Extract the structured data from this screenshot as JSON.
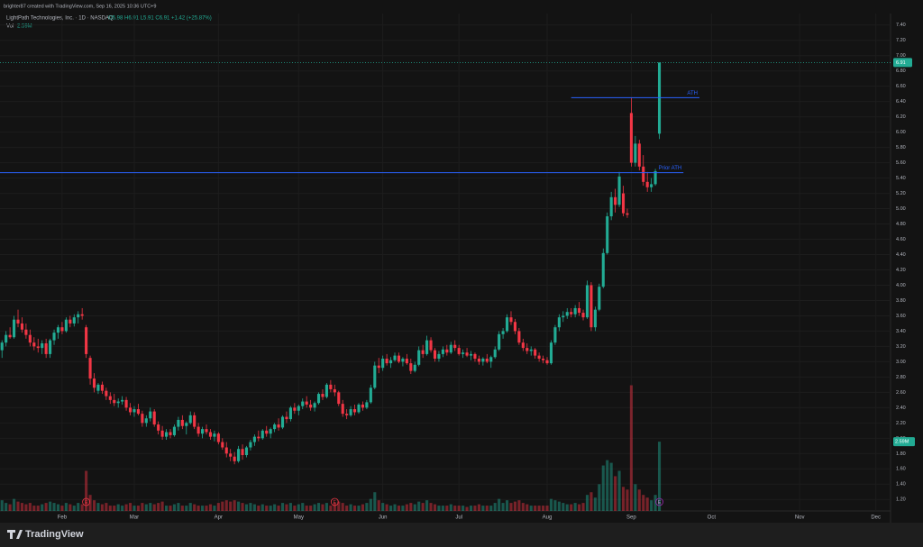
{
  "header": {
    "credit": "brighter87 created with TradingView.com, Sep 16, 2025 10:36 UTC+9"
  },
  "footer": {
    "logo": "TradingView"
  },
  "chart_data": {
    "type": "candlestick",
    "symbol": "LightPath Technologies, Inc. · 1D · NASDAQ",
    "ohlc_text": "O5.98 H6.91 L5.91 C6.91 +1.42 (+25.87%)",
    "volume_title": "Vol",
    "volume_label": "2.59M",
    "last_price": 6.91,
    "up_color": "#22ab94",
    "down_color": "#f23645",
    "grid": true,
    "ylim": [
      1.05,
      7.55
    ],
    "vlim": [
      0,
      18.6
    ],
    "xlim": [
      -0.5,
      221
    ],
    "yticks": [
      {
        "value": 1.2,
        "label": "1.20"
      },
      {
        "value": 1.4,
        "label": "1.40"
      },
      {
        "value": 1.6,
        "label": "1.60"
      },
      {
        "value": 1.8,
        "label": "1.80"
      },
      {
        "value": 2.0,
        "label": "2.00"
      },
      {
        "value": 2.2,
        "label": "2.20"
      },
      {
        "value": 2.4,
        "label": "2.40"
      },
      {
        "value": 2.6,
        "label": "2.60"
      },
      {
        "value": 2.8,
        "label": "2.80"
      },
      {
        "value": 3.0,
        "label": "3.00"
      },
      {
        "value": 3.2,
        "label": "3.20"
      },
      {
        "value": 3.4,
        "label": "3.40"
      },
      {
        "value": 3.6,
        "label": "3.60"
      },
      {
        "value": 3.8,
        "label": "3.80"
      },
      {
        "value": 4.0,
        "label": "4.00"
      },
      {
        "value": 4.2,
        "label": "4.20"
      },
      {
        "value": 4.4,
        "label": "4.40"
      },
      {
        "value": 4.6,
        "label": "4.60"
      },
      {
        "value": 4.8,
        "label": "4.80"
      },
      {
        "value": 5.0,
        "label": "5.00"
      },
      {
        "value": 5.2,
        "label": "5.20"
      },
      {
        "value": 5.4,
        "label": "5.40"
      },
      {
        "value": 5.6,
        "label": "5.60"
      },
      {
        "value": 5.8,
        "label": "5.80"
      },
      {
        "value": 6.0,
        "label": "6.00"
      },
      {
        "value": 6.2,
        "label": "6.20"
      },
      {
        "value": 6.4,
        "label": "6.40"
      },
      {
        "value": 6.6,
        "label": "6.60"
      },
      {
        "value": 6.8,
        "label": "6.80"
      },
      {
        "value": 7.0,
        "label": "7.00"
      },
      {
        "value": 7.2,
        "label": "7.20"
      },
      {
        "value": 7.4,
        "label": "7.40"
      }
    ],
    "xticks": [
      {
        "value": 15,
        "label": "Feb"
      },
      {
        "value": 33,
        "label": "Mar"
      },
      {
        "value": 54,
        "label": "Apr"
      },
      {
        "value": 74,
        "label": "May"
      },
      {
        "value": 95,
        "label": "Jun"
      },
      {
        "value": 114,
        "label": "Jul"
      },
      {
        "value": 136,
        "label": "Aug"
      },
      {
        "value": 157,
        "label": "Sep"
      },
      {
        "value": 177,
        "label": "Oct"
      },
      {
        "value": 199,
        "label": "Nov"
      },
      {
        "value": 218,
        "label": "Dec"
      }
    ],
    "levels": [
      {
        "label": "ATH",
        "value": 6.45,
        "x_range": [
          142,
          174
        ],
        "color": "#2962ff"
      },
      {
        "label": "Prior ATH",
        "value": 5.47,
        "x_range": [
          -0.5,
          170
        ],
        "color": "#2962ff"
      }
    ],
    "events": [
      {
        "index": 21,
        "label": "E"
      },
      {
        "index": 83,
        "label": "E"
      },
      {
        "index": 164,
        "label": "E"
      }
    ],
    "ohlc": [
      [
        3.15,
        3.28,
        3.05,
        3.25
      ],
      [
        3.25,
        3.4,
        3.2,
        3.35
      ],
      [
        3.35,
        3.45,
        3.3,
        3.32
      ],
      [
        3.32,
        3.6,
        3.3,
        3.55
      ],
      [
        3.55,
        3.68,
        3.45,
        3.5
      ],
      [
        3.5,
        3.58,
        3.38,
        3.42
      ],
      [
        3.42,
        3.5,
        3.3,
        3.35
      ],
      [
        3.35,
        3.42,
        3.2,
        3.25
      ],
      [
        3.25,
        3.32,
        3.15,
        3.2
      ],
      [
        3.2,
        3.3,
        3.12,
        3.18
      ],
      [
        3.18,
        3.28,
        3.1,
        3.24
      ],
      [
        3.24,
        3.3,
        3.05,
        3.1
      ],
      [
        3.1,
        3.3,
        3.05,
        3.28
      ],
      [
        3.28,
        3.42,
        3.22,
        3.38
      ],
      [
        3.38,
        3.48,
        3.3,
        3.45
      ],
      [
        3.45,
        3.52,
        3.36,
        3.4
      ],
      [
        3.4,
        3.58,
        3.38,
        3.55
      ],
      [
        3.55,
        3.6,
        3.45,
        3.5
      ],
      [
        3.5,
        3.62,
        3.46,
        3.58
      ],
      [
        3.58,
        3.66,
        3.5,
        3.62
      ],
      [
        3.62,
        3.7,
        3.55,
        3.6
      ],
      [
        3.45,
        3.48,
        3.05,
        3.1
      ],
      [
        3.05,
        3.08,
        2.7,
        2.78
      ],
      [
        2.78,
        2.85,
        2.6,
        2.66
      ],
      [
        2.62,
        2.72,
        2.58,
        2.7
      ],
      [
        2.7,
        2.74,
        2.58,
        2.62
      ],
      [
        2.62,
        2.66,
        2.5,
        2.55
      ],
      [
        2.55,
        2.6,
        2.45,
        2.5
      ],
      [
        2.5,
        2.58,
        2.42,
        2.46
      ],
      [
        2.46,
        2.52,
        2.4,
        2.48
      ],
      [
        2.48,
        2.55,
        2.44,
        2.5
      ],
      [
        2.5,
        2.54,
        2.36,
        2.4
      ],
      [
        2.4,
        2.46,
        2.3,
        2.34
      ],
      [
        2.34,
        2.42,
        2.28,
        2.38
      ],
      [
        2.38,
        2.45,
        2.3,
        2.32
      ],
      [
        2.32,
        2.36,
        2.15,
        2.2
      ],
      [
        2.2,
        2.3,
        2.15,
        2.26
      ],
      [
        2.26,
        2.4,
        2.22,
        2.35
      ],
      [
        2.35,
        2.38,
        2.15,
        2.18
      ],
      [
        2.18,
        2.22,
        2.05,
        2.1
      ],
      [
        2.1,
        2.16,
        1.98,
        2.02
      ],
      [
        2.02,
        2.12,
        1.98,
        2.08
      ],
      [
        2.08,
        2.12,
        2.0,
        2.04
      ],
      [
        2.04,
        2.18,
        2.02,
        2.15
      ],
      [
        2.15,
        2.28,
        2.1,
        2.24
      ],
      [
        2.24,
        2.3,
        2.12,
        2.16
      ],
      [
        2.16,
        2.22,
        2.05,
        2.2
      ],
      [
        2.2,
        2.35,
        2.18,
        2.3
      ],
      [
        2.3,
        2.34,
        2.12,
        2.15
      ],
      [
        2.15,
        2.2,
        2.02,
        2.06
      ],
      [
        2.06,
        2.15,
        2.0,
        2.12
      ],
      [
        2.12,
        2.18,
        2.05,
        2.08
      ],
      [
        2.08,
        2.12,
        1.98,
        2.02
      ],
      [
        2.02,
        2.1,
        1.96,
        2.06
      ],
      [
        2.06,
        2.08,
        1.92,
        1.95
      ],
      [
        1.95,
        2.0,
        1.85,
        1.88
      ],
      [
        1.88,
        1.95,
        1.75,
        1.8
      ],
      [
        1.8,
        1.86,
        1.7,
        1.76
      ],
      [
        1.76,
        1.82,
        1.66,
        1.7
      ],
      [
        1.7,
        1.9,
        1.68,
        1.86
      ],
      [
        1.86,
        1.92,
        1.72,
        1.78
      ],
      [
        1.78,
        1.9,
        1.75,
        1.88
      ],
      [
        1.88,
        1.98,
        1.84,
        1.95
      ],
      [
        1.95,
        2.05,
        1.9,
        2.02
      ],
      [
        2.02,
        2.1,
        1.96,
        2.0
      ],
      [
        2.0,
        2.12,
        1.98,
        2.1
      ],
      [
        2.1,
        2.16,
        2.02,
        2.06
      ],
      [
        2.06,
        2.14,
        2.0,
        2.12
      ],
      [
        2.12,
        2.2,
        2.08,
        2.18
      ],
      [
        2.18,
        2.26,
        2.1,
        2.14
      ],
      [
        2.14,
        2.3,
        2.12,
        2.28
      ],
      [
        2.28,
        2.35,
        2.2,
        2.25
      ],
      [
        2.25,
        2.42,
        2.22,
        2.4
      ],
      [
        2.4,
        2.46,
        2.32,
        2.36
      ],
      [
        2.36,
        2.44,
        2.3,
        2.42
      ],
      [
        2.42,
        2.52,
        2.38,
        2.48
      ],
      [
        2.48,
        2.55,
        2.4,
        2.44
      ],
      [
        2.44,
        2.5,
        2.36,
        2.4
      ],
      [
        2.4,
        2.48,
        2.35,
        2.46
      ],
      [
        2.46,
        2.6,
        2.44,
        2.58
      ],
      [
        2.58,
        2.64,
        2.5,
        2.54
      ],
      [
        2.54,
        2.72,
        2.52,
        2.7
      ],
      [
        2.7,
        2.76,
        2.6,
        2.64
      ],
      [
        2.64,
        2.7,
        2.55,
        2.6
      ],
      [
        2.6,
        2.62,
        2.42,
        2.45
      ],
      [
        2.45,
        2.5,
        2.28,
        2.32
      ],
      [
        2.32,
        2.38,
        2.25,
        2.3
      ],
      [
        2.3,
        2.42,
        2.28,
        2.38
      ],
      [
        2.38,
        2.44,
        2.3,
        2.34
      ],
      [
        2.34,
        2.46,
        2.32,
        2.44
      ],
      [
        2.44,
        2.48,
        2.36,
        2.4
      ],
      [
        2.4,
        2.5,
        2.38,
        2.47
      ],
      [
        2.47,
        2.7,
        2.45,
        2.66
      ],
      [
        2.66,
        3.0,
        2.64,
        2.95
      ],
      [
        2.95,
        3.05,
        2.85,
        2.92
      ],
      [
        2.92,
        3.08,
        2.88,
        3.04
      ],
      [
        3.04,
        3.1,
        2.95,
        2.98
      ],
      [
        2.98,
        3.06,
        2.92,
        3.02
      ],
      [
        3.02,
        3.12,
        3.0,
        3.08
      ],
      [
        3.08,
        3.12,
        2.98,
        3.0
      ],
      [
        3.0,
        3.06,
        2.94,
        3.04
      ],
      [
        3.04,
        3.1,
        2.96,
        2.98
      ],
      [
        2.98,
        3.04,
        2.84,
        2.88
      ],
      [
        2.88,
        3.0,
        2.86,
        2.96
      ],
      [
        2.96,
        3.2,
        2.94,
        3.15
      ],
      [
        3.15,
        3.22,
        3.05,
        3.1
      ],
      [
        3.1,
        3.34,
        3.08,
        3.28
      ],
      [
        3.28,
        3.32,
        3.12,
        3.15
      ],
      [
        3.15,
        3.18,
        3.0,
        3.04
      ],
      [
        3.04,
        3.14,
        3.0,
        3.1
      ],
      [
        3.1,
        3.2,
        3.06,
        3.16
      ],
      [
        3.16,
        3.22,
        3.08,
        3.12
      ],
      [
        3.12,
        3.26,
        3.1,
        3.22
      ],
      [
        3.22,
        3.28,
        3.14,
        3.18
      ],
      [
        3.18,
        3.22,
        3.08,
        3.1
      ],
      [
        3.1,
        3.16,
        3.05,
        3.12
      ],
      [
        3.12,
        3.18,
        3.06,
        3.08
      ],
      [
        3.08,
        3.14,
        3.02,
        3.1
      ],
      [
        3.1,
        3.12,
        3.0,
        3.04
      ],
      [
        3.04,
        3.08,
        2.96,
        3.0
      ],
      [
        3.0,
        3.06,
        2.95,
        3.04
      ],
      [
        3.04,
        3.1,
        2.98,
        3.0
      ],
      [
        3.0,
        3.08,
        2.92,
        3.06
      ],
      [
        3.06,
        3.2,
        3.04,
        3.16
      ],
      [
        3.16,
        3.4,
        3.14,
        3.36
      ],
      [
        3.36,
        3.44,
        3.3,
        3.4
      ],
      [
        3.4,
        3.62,
        3.38,
        3.58
      ],
      [
        3.58,
        3.66,
        3.48,
        3.52
      ],
      [
        3.52,
        3.56,
        3.36,
        3.4
      ],
      [
        3.4,
        3.44,
        3.22,
        3.25
      ],
      [
        3.25,
        3.3,
        3.14,
        3.18
      ],
      [
        3.18,
        3.24,
        3.1,
        3.14
      ],
      [
        3.14,
        3.2,
        3.08,
        3.16
      ],
      [
        3.16,
        3.18,
        3.04,
        3.08
      ],
      [
        3.08,
        3.12,
        3.0,
        3.04
      ],
      [
        3.04,
        3.08,
        2.98,
        3.02
      ],
      [
        3.02,
        3.06,
        2.96,
        2.98
      ],
      [
        2.98,
        3.28,
        2.96,
        3.25
      ],
      [
        3.25,
        3.48,
        3.22,
        3.45
      ],
      [
        3.45,
        3.62,
        3.4,
        3.58
      ],
      [
        3.58,
        3.66,
        3.52,
        3.6
      ],
      [
        3.6,
        3.7,
        3.56,
        3.65
      ],
      [
        3.65,
        3.7,
        3.58,
        3.62
      ],
      [
        3.62,
        3.74,
        3.58,
        3.7
      ],
      [
        3.7,
        3.78,
        3.6,
        3.64
      ],
      [
        3.64,
        3.68,
        3.54,
        3.58
      ],
      [
        3.58,
        4.06,
        3.56,
        4.0
      ],
      [
        4.0,
        4.04,
        3.4,
        3.45
      ],
      [
        3.45,
        3.72,
        3.4,
        3.68
      ],
      [
        3.68,
        4.02,
        3.66,
        3.98
      ],
      [
        3.98,
        4.48,
        3.96,
        4.42
      ],
      [
        4.42,
        4.95,
        4.4,
        4.9
      ],
      [
        4.9,
        5.22,
        4.85,
        5.15
      ],
      [
        5.15,
        5.26,
        4.95,
        5.05
      ],
      [
        5.05,
        5.48,
        5.02,
        5.42
      ],
      [
        5.2,
        5.3,
        4.9,
        4.94
      ],
      [
        4.94,
        5.0,
        4.88,
        4.92
      ],
      [
        6.25,
        6.45,
        5.55,
        5.6
      ],
      [
        5.6,
        5.95,
        5.55,
        5.85
      ],
      [
        5.85,
        5.9,
        5.5,
        5.55
      ],
      [
        5.55,
        5.7,
        5.3,
        5.35
      ],
      [
        5.35,
        5.48,
        5.22,
        5.28
      ],
      [
        5.28,
        5.4,
        5.22,
        5.32
      ],
      [
        5.32,
        5.52,
        5.3,
        5.49
      ],
      [
        5.98,
        6.91,
        5.91,
        6.91
      ]
    ],
    "volume": [
      0.4,
      0.3,
      0.25,
      0.45,
      0.35,
      0.3,
      0.25,
      0.3,
      0.2,
      0.2,
      0.25,
      0.3,
      0.35,
      0.3,
      0.25,
      0.2,
      0.3,
      0.25,
      0.2,
      0.3,
      0.25,
      1.5,
      0.6,
      0.4,
      0.3,
      0.25,
      0.3,
      0.2,
      0.2,
      0.25,
      0.2,
      0.25,
      0.3,
      0.2,
      0.2,
      0.3,
      0.25,
      0.3,
      0.25,
      0.3,
      0.35,
      0.2,
      0.2,
      0.25,
      0.3,
      0.2,
      0.2,
      0.3,
      0.25,
      0.2,
      0.2,
      0.2,
      0.25,
      0.2,
      0.3,
      0.35,
      0.4,
      0.35,
      0.4,
      0.35,
      0.3,
      0.25,
      0.3,
      0.25,
      0.2,
      0.25,
      0.2,
      0.2,
      0.25,
      0.2,
      0.3,
      0.25,
      0.3,
      0.2,
      0.25,
      0.3,
      0.2,
      0.2,
      0.25,
      0.3,
      0.25,
      0.3,
      0.2,
      0.3,
      0.35,
      0.3,
      0.2,
      0.25,
      0.2,
      0.2,
      0.25,
      0.3,
      0.45,
      0.7,
      0.4,
      0.3,
      0.25,
      0.2,
      0.25,
      0.2,
      0.2,
      0.25,
      0.3,
      0.25,
      0.35,
      0.3,
      0.4,
      0.3,
      0.25,
      0.2,
      0.2,
      0.2,
      0.25,
      0.2,
      0.2,
      0.2,
      0.15,
      0.2,
      0.2,
      0.25,
      0.2,
      0.2,
      0.2,
      0.3,
      0.45,
      0.3,
      0.4,
      0.3,
      0.35,
      0.4,
      0.3,
      0.25,
      0.2,
      0.2,
      0.2,
      0.2,
      0.2,
      0.45,
      0.4,
      0.35,
      0.3,
      0.25,
      0.25,
      0.3,
      0.25,
      0.3,
      0.6,
      0.7,
      0.5,
      1.0,
      1.7,
      1.9,
      1.8,
      1.3,
      1.5,
      0.9,
      0.8,
      4.7,
      1.0,
      0.8,
      0.6,
      0.5,
      0.4,
      0.6,
      2.59
    ]
  }
}
